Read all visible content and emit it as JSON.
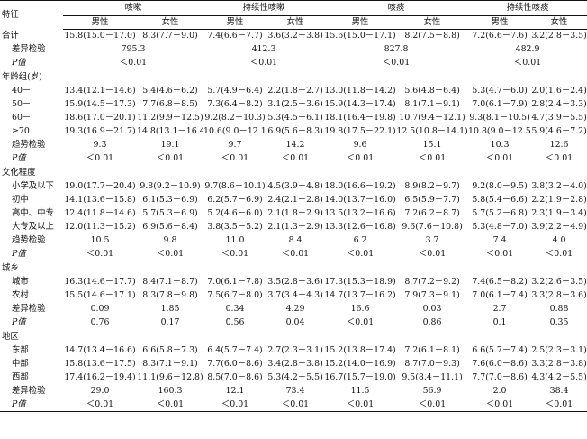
{
  "header": {
    "feature": "特征",
    "groups": [
      "咳嗽",
      "持续性咳嗽",
      "咳痰",
      "持续性咳痰"
    ],
    "sexes": [
      "男性",
      "女性"
    ]
  },
  "rows": [
    {
      "label": "合计",
      "kind": "group",
      "cells": [
        "15.8(15.0－17.0)",
        "8.3(7.7－9.0)",
        "7.4(6.6－7.7)",
        "3.6(3.2－3.8)",
        "15.6(15.0－17.1)",
        "8.2(7.5－8.8)",
        "7.2(6.6－7.6)",
        "3.2(2.8－3.5)"
      ]
    },
    {
      "label": "差异检验",
      "kind": "stat-merged",
      "cells": [
        "795.3",
        "412.3",
        "827.8",
        "482.9"
      ]
    },
    {
      "label": "P值",
      "kind": "p-merged",
      "cells": [
        "＜0.01",
        "＜0.01",
        "＜0.01",
        "＜0.01"
      ]
    },
    {
      "label": "年龄组(岁)",
      "kind": "section"
    },
    {
      "label": "40－",
      "kind": "sub",
      "cells": [
        "13.4(12.1－14.6)",
        "5.4(4.6－6.2)",
        "5.7(4.9－6.4)",
        "2.2(1.8－2.7)",
        "13.0(11.8－14.2)",
        "5.6(4.8－6.4)",
        "5.3(4.7－6.0)",
        "2.0(1.6－2.4)"
      ]
    },
    {
      "label": "50－",
      "kind": "sub",
      "cells": [
        "15.9(14.5－17.3)",
        "7.7(6.8－8.5)",
        "7.3(6.4－8.2)",
        "3.1(2.5－3.6)",
        "15.9(14.3－17.4)",
        "8.1(7.1－9.1)",
        "7.0(6.1－7.9)",
        "2.8(2.4－3.3)"
      ]
    },
    {
      "label": "60－",
      "kind": "sub",
      "cells": [
        "18.6(17.0－20.1)",
        "11.2(9.9－12.5)",
        "9.2(8.2－10.3)",
        "5.3(4.5－6.1)",
        "18.1(16.4－19.8)",
        "10.7(9.4－12.1)",
        "9.3(8.1－10.5)",
        "4.7(3.9－5.5)"
      ]
    },
    {
      "label": "≥70",
      "kind": "sub",
      "cells": [
        "19.3(16.9－21.7)",
        "14.8(13.1－16.4)",
        "10.6(9.0－12.1)",
        "6.9(5.6－8.3)",
        "19.8(17.5－22.1)",
        "12.5(10.8－14.1)",
        "10.8(9.0－12.5)",
        "5.9(4.6－7.2)"
      ]
    },
    {
      "label": "趋势检验",
      "kind": "stat",
      "cells": [
        "9.3",
        "19.1",
        "9.7",
        "14.2",
        "9.6",
        "15.1",
        "10.3",
        "12.6"
      ]
    },
    {
      "label": "P值",
      "kind": "p",
      "cells": [
        "＜0.01",
        "＜0.01",
        "＜0.01",
        "＜0.01",
        "＜0.01",
        "＜0.01",
        "＜0.01",
        "＜0.01"
      ]
    },
    {
      "label": "文化程度",
      "kind": "section"
    },
    {
      "label": "小学及以下",
      "kind": "sub",
      "cells": [
        "19.0(17.7－20.4)",
        "9.8(9.2－10.9)",
        "9.7(8.6－10.1)",
        "4.5(3.9－4.8)",
        "18.0(16.6－19.2)",
        "8.9(8.2－9.7)",
        "9.2(8.0－9.5)",
        "3.8(3.2－4.0)"
      ]
    },
    {
      "label": "初中",
      "kind": "sub",
      "cells": [
        "14.1(13.6－15.8)",
        "6.1(5.3－6.9)",
        "6.2(5.7－6.9)",
        "2.4(2.1－2.8)",
        "14.0(13.7－16.0)",
        "6.5(5.9－7.7)",
        "5.8(5.4－6.6)",
        "2.2(1.9－2.8)"
      ]
    },
    {
      "label": "高中、中专",
      "kind": "sub",
      "cells": [
        "12.4(11.8－14.6)",
        "5.7(5.3－6.9)",
        "5.2(4.6－6.0)",
        "2.1(1.8－2.9)",
        "13.5(13.2－16.6)",
        "7.2(6.2－8.7)",
        "5.7(5.2－6.8)",
        "2.3(1.9－3.4)"
      ]
    },
    {
      "label": "大专及以上",
      "kind": "sub",
      "cells": [
        "12.0(11.3－15.2)",
        "6.9(5.6－8.4)",
        "3.8(3.5－5.2)",
        "2.1(1.3－2.9)",
        "13.3(12.6－16.8)",
        "9.6(7.6－10.8)",
        "5.3(4.8－7.0)",
        "3.9(2.2－4.9)"
      ]
    },
    {
      "label": "趋势检验",
      "kind": "stat",
      "cells": [
        "10.5",
        "9.8",
        "11.0",
        "8.4",
        "6.2",
        "3.7",
        "7.4",
        "4.0"
      ]
    },
    {
      "label": "P值",
      "kind": "p",
      "cells": [
        "＜0.01",
        "＜0.01",
        "＜0.01",
        "＜0.01",
        "＜0.01",
        "＜0.01",
        "＜0.01",
        "＜0.01"
      ]
    },
    {
      "label": "城乡",
      "kind": "section"
    },
    {
      "label": "城市",
      "kind": "sub",
      "cells": [
        "16.3(14.6－17.7)",
        "8.4(7.1－8.7)",
        "7.0(6.1－7.8)",
        "3.5(2.8－3.6)",
        "17.3(15.3－18.9)",
        "8.7(7.2－9.2)",
        "7.4(6.5－8.2)",
        "3.2(2.6－3.5)"
      ]
    },
    {
      "label": "农村",
      "kind": "sub",
      "cells": [
        "15.5(14.6－17.1)",
        "8.3(7.8－9.8)",
        "7.5(6.7－8.0)",
        "3.7(3.4－4.3)",
        "14.7(13.7－16.2)",
        "7.9(7.3－9.1)",
        "7.0(6.1－7.4)",
        "3.3(2.8－3.6)"
      ]
    },
    {
      "label": "差异检验",
      "kind": "stat",
      "cells": [
        "0.09",
        "1.85",
        "0.34",
        "4.29",
        "16.6",
        "0.03",
        "2.7",
        "0.88"
      ]
    },
    {
      "label": "P值",
      "kind": "p",
      "cells": [
        "0.76",
        "0.17",
        "0.56",
        "0.04",
        "＜0.01",
        "0.86",
        "0.1",
        "0.35"
      ]
    },
    {
      "label": "地区",
      "kind": "section"
    },
    {
      "label": "东部",
      "kind": "sub",
      "cells": [
        "14.7(13.4－16.6)",
        "6.6(5.8－7.3)",
        "6.4(5.7－7.4)",
        "2.7(2.3－3.1)",
        "15.2(13.8－17.4)",
        "7.2(6.1－8.1)",
        "6.6(5.7－7.4)",
        "2.5(2.3－3.1)"
      ]
    },
    {
      "label": "中部",
      "kind": "sub",
      "cells": [
        "15.8(13.6－17.5)",
        "8.3(7.1－9.1)",
        "7.7(6.0－8.6)",
        "3.4(2.8－3.8)",
        "15.2(14.0－16.9)",
        "8.7(7.0－9.3)",
        "7.6(6.0－8.6)",
        "3.3(2.8－3.8)"
      ]
    },
    {
      "label": "西部",
      "kind": "sub",
      "cells": [
        "17.4(16.2－19.4)",
        "11.1(9.6－12.8)",
        "8.5(7.0－8.6)",
        "5.3(4.2－5.5)",
        "16.7(15.7－19.0)",
        "9.5(8.4－11.1)",
        "7.7(7.0－8.6)",
        "4.3(4.2－5.5)"
      ]
    },
    {
      "label": "差异检验",
      "kind": "stat",
      "cells": [
        "29.0",
        "160.3",
        "12.1",
        "73.4",
        "11.5",
        "56.9",
        "2.0",
        "38.4"
      ]
    },
    {
      "label": "P值",
      "kind": "p",
      "cells": [
        "＜0.01",
        "＜0.01",
        "＜0.01",
        "＜0.01",
        "＜0.01",
        "＜0.01",
        "＜0.01",
        "＜0.01"
      ]
    }
  ]
}
